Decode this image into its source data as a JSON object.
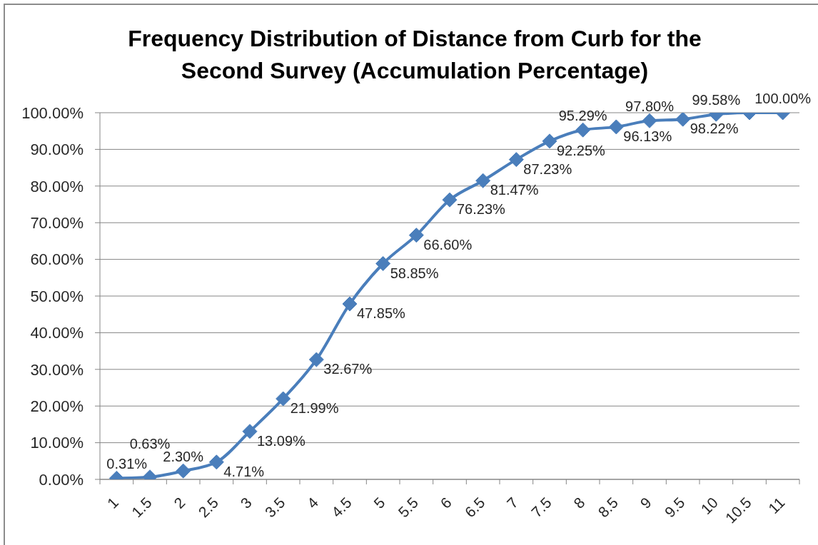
{
  "chart_data": {
    "type": "line",
    "title": "Frequency Distribution of Distance from Curb for the Second Survey (Accumulation Percentage)",
    "categories": [
      "1",
      "1.5",
      "2",
      "2.5",
      "3",
      "3.5",
      "4",
      "4.5",
      "5",
      "5.5",
      "6",
      "6.5",
      "7",
      "7.5",
      "8",
      "8.5",
      "9",
      "9.5",
      "10",
      "10.5",
      "11"
    ],
    "values": [
      0.31,
      0.63,
      2.3,
      4.71,
      13.09,
      21.99,
      32.67,
      47.85,
      58.85,
      66.6,
      76.23,
      81.47,
      87.23,
      92.25,
      95.29,
      96.13,
      97.8,
      98.22,
      99.58,
      100,
      100
    ],
    "value_labels": [
      "0.31%",
      "0.63%",
      "2.30%",
      "4.71%",
      "13.09%",
      "21.99%",
      "32.67%",
      "47.85%",
      "58.85%",
      "66.60%",
      "76.23%",
      "81.47%",
      "87.23%",
      "92.25%",
      "95.29%",
      "96.13%",
      "97.80%",
      "98.22%",
      "99.58%",
      null,
      "100.00%"
    ],
    "color": "#4a7ebb",
    "ylim": [
      0,
      100
    ],
    "yticks": [
      {
        "value": 0,
        "label": "0.00%"
      },
      {
        "value": 10,
        "label": "10.00%"
      },
      {
        "value": 20,
        "label": "20.00%"
      },
      {
        "value": 30,
        "label": "30.00%"
      },
      {
        "value": 40,
        "label": "40.00%"
      },
      {
        "value": 50,
        "label": "50.00%"
      },
      {
        "value": 60,
        "label": "60.00%"
      },
      {
        "value": 70,
        "label": "70.00%"
      },
      {
        "value": 80,
        "label": "80.00%"
      },
      {
        "value": 90,
        "label": "90.00%"
      },
      {
        "value": 100,
        "label": "100.00%"
      }
    ],
    "grid": "y",
    "marker": "diamond",
    "line_style": "solid"
  }
}
